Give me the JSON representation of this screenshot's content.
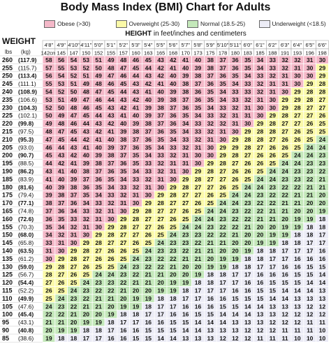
{
  "title": "Body Mass Index (BMI) Chart for Adults",
  "legend": [
    {
      "label": "Obese (>30)",
      "color": "#f4b8c8"
    },
    {
      "label": "Overweight (25-30)",
      "color": "#fbfaa8"
    },
    {
      "label": "Normal (18.5-25)",
      "color": "#c4e8ba"
    },
    {
      "label": "Underweight (<18.5)",
      "color": "#ececf6"
    }
  ],
  "height_label_bold": "HEIGHT",
  "height_label_rest": " in feet/inches and centimeters",
  "weight_label": "WEIGHT",
  "lbs_label": "lbs",
  "kg_label": "(kg)",
  "chart_data": {
    "type": "table",
    "title": "Body Mass Index (BMI) Chart for Adults",
    "heights_ft": [
      "4'8\"",
      "4'9\"",
      "4'10\"",
      "4'11\"",
      "5'0\"",
      "5'1\"",
      "5'2\"",
      "5'3\"",
      "5'4\"",
      "5'5\"",
      "5'6\"",
      "5'7\"",
      "5'8\"",
      "5'9\"",
      "5'10\"",
      "5'11\"",
      "6'0\"",
      "6'1\"",
      "6'2\"",
      "6'3\"",
      "6'4\"",
      "6'5\"",
      "6'6\""
    ],
    "heights_cm": [
      "142cm",
      "145",
      "147",
      "150",
      "152",
      "155",
      "157",
      "160",
      "163",
      "165",
      "168",
      "170",
      "173",
      "175",
      "178",
      "180",
      "183",
      "185",
      "188",
      "191",
      "193",
      "196",
      "198"
    ],
    "weights_lbs": [
      "260",
      "255",
      "250",
      "245",
      "240",
      "235",
      "230",
      "225",
      "220",
      "215",
      "210",
      "205",
      "200",
      "195",
      "190",
      "185",
      "180",
      "175",
      "170",
      "165",
      "160",
      "155",
      "150",
      "145",
      "140",
      "135",
      "130",
      "125",
      "120",
      "115",
      "110",
      "105",
      "100",
      "95",
      "90",
      "85"
    ],
    "weights_kg": [
      "(117.9)",
      "(115.7)",
      "(113.4)",
      "(111.1)",
      "(108.9)",
      "(106.6)",
      "(104.3)",
      "(102.1)",
      "(99.8)",
      "(97.5)",
      "(95.3)",
      "(93.0)",
      "(90.7)",
      "(88.5)",
      "(86.2)",
      "(83.9)",
      "(81.6)",
      "(79.4)",
      "(77.1)",
      "(74.8)",
      "(72.6)",
      "(70.3)",
      "(68.0)",
      "(65.8)",
      "(63.5)",
      "(61.2)",
      "(59.0)",
      "(56.7)",
      "(54.4)",
      "(52.2)",
      "(49.9)",
      "(47.6)",
      "(45.4)",
      "(43.1)",
      "(40.8)",
      "(38.6)"
    ],
    "bmi": [
      [
        58,
        56,
        54,
        53,
        51,
        49,
        48,
        46,
        45,
        43,
        42,
        41,
        40,
        38,
        37,
        36,
        35,
        34,
        33,
        32,
        32,
        31,
        30
      ],
      [
        57,
        55,
        53,
        52,
        50,
        48,
        47,
        45,
        44,
        42,
        41,
        40,
        39,
        38,
        37,
        36,
        35,
        34,
        33,
        32,
        31,
        30,
        29
      ],
      [
        56,
        54,
        52,
        51,
        49,
        47,
        46,
        44,
        43,
        42,
        40,
        39,
        38,
        37,
        36,
        35,
        34,
        33,
        32,
        31,
        30,
        30,
        29
      ],
      [
        55,
        53,
        51,
        49,
        48,
        46,
        45,
        43,
        42,
        41,
        40,
        38,
        37,
        36,
        35,
        34,
        33,
        32,
        31,
        31,
        30,
        29,
        28
      ],
      [
        54,
        52,
        50,
        48,
        47,
        45,
        44,
        43,
        41,
        40,
        39,
        38,
        36,
        35,
        34,
        33,
        33,
        32,
        31,
        30,
        29,
        28,
        28
      ],
      [
        53,
        51,
        49,
        47,
        46,
        44,
        43,
        42,
        40,
        39,
        38,
        37,
        36,
        35,
        34,
        33,
        32,
        31,
        30,
        29,
        29,
        28,
        27
      ],
      [
        52,
        50,
        48,
        46,
        45,
        43,
        42,
        41,
        39,
        38,
        37,
        36,
        35,
        34,
        33,
        32,
        31,
        30,
        30,
        29,
        28,
        27,
        27
      ],
      [
        50,
        49,
        47,
        45,
        44,
        43,
        41,
        40,
        39,
        37,
        36,
        35,
        34,
        33,
        32,
        31,
        31,
        30,
        29,
        28,
        27,
        27,
        26
      ],
      [
        49,
        48,
        46,
        44,
        43,
        42,
        40,
        39,
        38,
        37,
        36,
        34,
        33,
        32,
        32,
        31,
        30,
        29,
        28,
        27,
        27,
        26,
        25
      ],
      [
        48,
        47,
        45,
        43,
        42,
        41,
        39,
        38,
        37,
        36,
        35,
        34,
        33,
        32,
        31,
        30,
        29,
        28,
        28,
        27,
        26,
        25,
        25
      ],
      [
        47,
        45,
        44,
        42,
        41,
        40,
        38,
        37,
        36,
        35,
        34,
        33,
        32,
        31,
        30,
        29,
        28,
        28,
        27,
        26,
        26,
        25,
        24
      ],
      [
        46,
        44,
        43,
        41,
        40,
        39,
        37,
        36,
        35,
        34,
        33,
        32,
        31,
        30,
        29,
        29,
        28,
        27,
        26,
        26,
        25,
        24,
        24
      ],
      [
        45,
        43,
        42,
        40,
        39,
        38,
        37,
        35,
        34,
        33,
        32,
        31,
        30,
        30,
        29,
        28,
        27,
        26,
        26,
        25,
        24,
        24,
        23
      ],
      [
        44,
        42,
        41,
        39,
        38,
        37,
        36,
        35,
        33,
        32,
        31,
        31,
        30,
        29,
        28,
        27,
        26,
        26,
        25,
        24,
        24,
        23,
        23
      ],
      [
        43,
        41,
        40,
        38,
        37,
        36,
        35,
        34,
        33,
        32,
        31,
        30,
        29,
        28,
        27,
        26,
        26,
        25,
        24,
        24,
        23,
        23,
        22
      ],
      [
        41,
        40,
        39,
        37,
        36,
        35,
        34,
        33,
        32,
        31,
        30,
        29,
        28,
        27,
        27,
        26,
        25,
        24,
        24,
        23,
        23,
        22,
        21
      ],
      [
        40,
        39,
        38,
        36,
        35,
        34,
        33,
        32,
        31,
        30,
        29,
        28,
        27,
        27,
        26,
        25,
        24,
        24,
        23,
        22,
        22,
        21,
        21
      ],
      [
        39,
        38,
        37,
        35,
        34,
        33,
        32,
        31,
        30,
        29,
        28,
        27,
        27,
        26,
        25,
        24,
        24,
        23,
        22,
        22,
        21,
        21,
        20
      ],
      [
        38,
        37,
        36,
        34,
        33,
        32,
        31,
        30,
        29,
        28,
        27,
        27,
        26,
        25,
        24,
        24,
        23,
        22,
        22,
        21,
        21,
        20,
        20
      ],
      [
        37,
        36,
        34,
        33,
        32,
        31,
        30,
        29,
        28,
        27,
        27,
        26,
        25,
        24,
        24,
        23,
        22,
        22,
        21,
        21,
        20,
        20,
        19
      ],
      [
        36,
        35,
        33,
        32,
        31,
        30,
        29,
        28,
        27,
        27,
        26,
        25,
        24,
        24,
        23,
        22,
        22,
        21,
        21,
        20,
        19,
        19,
        18
      ],
      [
        35,
        34,
        32,
        31,
        30,
        29,
        28,
        27,
        27,
        26,
        25,
        24,
        24,
        23,
        22,
        22,
        21,
        20,
        20,
        19,
        19,
        18,
        18
      ],
      [
        34,
        32,
        31,
        30,
        29,
        28,
        27,
        27,
        26,
        25,
        24,
        23,
        23,
        22,
        22,
        21,
        20,
        20,
        19,
        19,
        18,
        18,
        17
      ],
      [
        33,
        31,
        30,
        29,
        28,
        27,
        27,
        26,
        25,
        24,
        23,
        23,
        22,
        21,
        21,
        20,
        20,
        19,
        19,
        18,
        18,
        17,
        17
      ],
      [
        31,
        30,
        29,
        28,
        27,
        26,
        26,
        25,
        24,
        23,
        23,
        22,
        21,
        21,
        20,
        20,
        19,
        18,
        18,
        17,
        17,
        17,
        16
      ],
      [
        30,
        29,
        28,
        27,
        26,
        26,
        25,
        24,
        23,
        22,
        22,
        21,
        21,
        20,
        19,
        19,
        18,
        18,
        17,
        17,
        16,
        16,
        16
      ],
      [
        29,
        28,
        27,
        26,
        25,
        25,
        24,
        23,
        22,
        22,
        21,
        20,
        20,
        19,
        19,
        18,
        18,
        17,
        17,
        16,
        16,
        15,
        15
      ],
      [
        28,
        27,
        26,
        25,
        24,
        24,
        23,
        22,
        21,
        21,
        20,
        20,
        19,
        18,
        18,
        17,
        17,
        16,
        16,
        16,
        15,
        15,
        14
      ],
      [
        27,
        26,
        25,
        24,
        23,
        23,
        22,
        21,
        21,
        20,
        19,
        19,
        18,
        18,
        17,
        17,
        16,
        16,
        15,
        15,
        15,
        14,
        14
      ],
      [
        26,
        25,
        24,
        23,
        22,
        22,
        21,
        20,
        20,
        19,
        19,
        18,
        17,
        17,
        17,
        16,
        16,
        15,
        15,
        14,
        14,
        14,
        13
      ],
      [
        25,
        24,
        23,
        22,
        21,
        21,
        20,
        19,
        19,
        18,
        18,
        17,
        17,
        16,
        16,
        15,
        15,
        15,
        14,
        14,
        13,
        13,
        13
      ],
      [
        24,
        23,
        22,
        21,
        21,
        20,
        19,
        19,
        18,
        17,
        17,
        16,
        16,
        16,
        15,
        15,
        14,
        14,
        13,
        13,
        13,
        12,
        12
      ],
      [
        22,
        22,
        21,
        20,
        20,
        19,
        18,
        18,
        17,
        17,
        16,
        16,
        15,
        15,
        14,
        14,
        14,
        13,
        13,
        12,
        12,
        12,
        12
      ],
      [
        21,
        21,
        20,
        19,
        19,
        18,
        17,
        17,
        16,
        16,
        15,
        15,
        14,
        14,
        14,
        13,
        13,
        13,
        12,
        12,
        12,
        11,
        11
      ],
      [
        20,
        19,
        19,
        18,
        18,
        17,
        16,
        16,
        15,
        15,
        15,
        14,
        14,
        13,
        13,
        13,
        12,
        12,
        12,
        11,
        11,
        11,
        10
      ],
      [
        19,
        18,
        18,
        17,
        17,
        16,
        16,
        15,
        15,
        14,
        14,
        13,
        13,
        13,
        12,
        12,
        12,
        11,
        11,
        11,
        10,
        10,
        10
      ]
    ],
    "categories": [
      {
        "name": "Obese",
        "min": 30
      },
      {
        "name": "Overweight",
        "min": 25,
        "max": 30
      },
      {
        "name": "Normal",
        "min": 18.5,
        "max": 25
      },
      {
        "name": "Underweight",
        "max": 18.5
      }
    ]
  }
}
